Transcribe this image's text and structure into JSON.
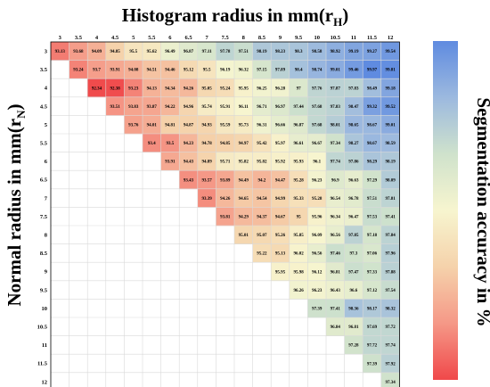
{
  "chart_data": {
    "type": "heatmap",
    "title": "Histogram radius in mm(r",
    "title_sub": "H",
    "title_end": ")",
    "xlabel": "Histogram radius in mm(r_H)",
    "ylabel": "Normal radius in mm(r",
    "ylabel_sub": "N",
    "ylabel_end": ")",
    "colorbar_label": "Segmentation accuracy in %",
    "colorscale": [
      "#f0484a",
      "#f59887",
      "#f5d2ab",
      "#f7f5cf",
      "#cfe2cc",
      "#9cb9df",
      "#5f8be0"
    ],
    "x": [
      "3",
      "3.5",
      "4",
      "4.5",
      "5",
      "5.5",
      "6",
      "6.5",
      "7",
      "7.5",
      "8",
      "8.5",
      "9",
      "9.5",
      "10",
      "10.5",
      "11",
      "11.5",
      "12"
    ],
    "y": [
      "3",
      "3.5",
      "4",
      "4.5",
      "5",
      "5.5",
      "6",
      "6.5",
      "7",
      "7.5",
      "8",
      "8.5",
      "9",
      "9.5",
      "10",
      "10.5",
      "11",
      "11.5",
      "12"
    ],
    "values": [
      [
        93.13,
        93.68,
        94.09,
        94.85,
        95.5,
        95.62,
        96.49,
        96.87,
        97.11,
        97.78,
        97.51,
        98.19,
        98.23,
        98.3,
        98.58,
        98.92,
        99.19,
        99.27,
        99.54
      ],
      [
        null,
        93.24,
        93.7,
        93.91,
        94.08,
        94.51,
        94.46,
        95.12,
        95.5,
        96.19,
        96.32,
        97.15,
        97.89,
        98.4,
        98.74,
        99.01,
        99.46,
        99.97,
        99.81
      ],
      [
        null,
        null,
        92.34,
        92.38,
        93.23,
        94.13,
        94.34,
        94.26,
        95.05,
        95.24,
        95.95,
        96.25,
        96.28,
        97,
        97.76,
        97.87,
        97.83,
        98.49,
        99.18
      ],
      [
        null,
        null,
        null,
        93.51,
        93.83,
        93.87,
        94.22,
        94.96,
        95.74,
        95.91,
        96.11,
        96.71,
        96.97,
        97.44,
        97.68,
        97.83,
        98.47,
        99.32,
        99.52
      ],
      [
        null,
        null,
        null,
        null,
        93.76,
        94.01,
        94.81,
        94.87,
        94.93,
        95.59,
        95.73,
        96.31,
        96.66,
        96.87,
        97.68,
        98.01,
        98.65,
        98.67,
        99.01
      ],
      [
        null,
        null,
        null,
        null,
        null,
        93.4,
        93.5,
        94.23,
        94.78,
        94.85,
        94.97,
        95.42,
        95.97,
        96.61,
        96.67,
        97.34,
        98.27,
        98.67,
        98.59
      ],
      [
        null,
        null,
        null,
        null,
        null,
        null,
        93.91,
        94.43,
        94.89,
        95.71,
        95.82,
        95.82,
        95.92,
        95.93,
        96.1,
        97.74,
        97.86,
        98.29,
        98.19
      ],
      [
        null,
        null,
        null,
        null,
        null,
        null,
        null,
        93.43,
        93.57,
        93.89,
        94.49,
        94.2,
        94.47,
        95.28,
        96.23,
        96.9,
        96.63,
        97.29,
        98.09
      ],
      [
        null,
        null,
        null,
        null,
        null,
        null,
        null,
        null,
        93.39,
        94.26,
        94.65,
        94.54,
        94.99,
        95.33,
        95.28,
        96.54,
        96.78,
        97.51,
        97.81
      ],
      [
        null,
        null,
        null,
        null,
        null,
        null,
        null,
        null,
        null,
        93.81,
        94.29,
        94.37,
        94.67,
        95,
        95.96,
        96.34,
        96.47,
        97.53,
        97.41
      ],
      [
        null,
        null,
        null,
        null,
        null,
        null,
        null,
        null,
        null,
        null,
        95.01,
        95.07,
        95.26,
        95.85,
        96.09,
        96.56,
        97.85,
        97.18,
        97.84
      ],
      [
        null,
        null,
        null,
        null,
        null,
        null,
        null,
        null,
        null,
        null,
        null,
        95.22,
        95.13,
        96.02,
        96.56,
        97.46,
        97.3,
        97.06,
        97.96
      ],
      [
        null,
        null,
        null,
        null,
        null,
        null,
        null,
        null,
        null,
        null,
        null,
        null,
        95.95,
        95.98,
        96.12,
        96.81,
        97.47,
        97.33,
        97.88
      ],
      [
        null,
        null,
        null,
        null,
        null,
        null,
        null,
        null,
        null,
        null,
        null,
        null,
        null,
        96.26,
        96.23,
        96.43,
        96.6,
        97.12,
        97.54
      ],
      [
        null,
        null,
        null,
        null,
        null,
        null,
        null,
        null,
        null,
        null,
        null,
        null,
        null,
        null,
        97.39,
        97.41,
        98.36,
        98.17,
        98.32
      ],
      [
        null,
        null,
        null,
        null,
        null,
        null,
        null,
        null,
        null,
        null,
        null,
        null,
        null,
        null,
        null,
        96.84,
        96.81,
        97.69,
        97.72
      ],
      [
        null,
        null,
        null,
        null,
        null,
        null,
        null,
        null,
        null,
        null,
        null,
        null,
        null,
        null,
        null,
        null,
        97.28,
        97.72,
        97.74
      ],
      [
        null,
        null,
        null,
        null,
        null,
        null,
        null,
        null,
        null,
        null,
        null,
        null,
        null,
        null,
        null,
        null,
        null,
        97.39,
        97.92
      ],
      [
        null,
        null,
        null,
        null,
        null,
        null,
        null,
        null,
        null,
        null,
        null,
        null,
        null,
        null,
        null,
        null,
        null,
        null,
        97.34
      ]
    ],
    "vmin": 92.3,
    "vmax": 99.9,
    "grid": true,
    "colorbar": "right",
    "show_values": true
  }
}
